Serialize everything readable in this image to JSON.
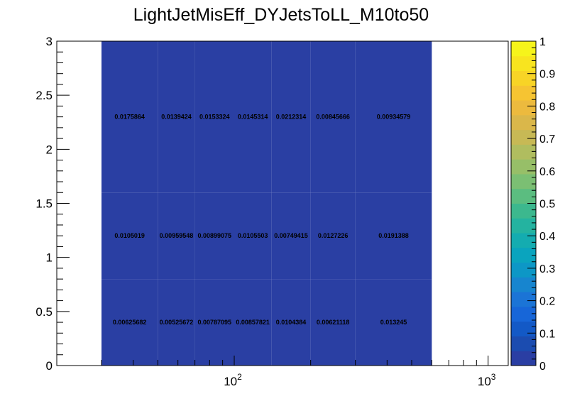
{
  "chart_data": {
    "type": "heatmap",
    "title": "LightJetMisEff_DYJetsToLL_M10to50",
    "x_scale": "log",
    "xlim": [
      20,
      1200
    ],
    "ylim": [
      0,
      3
    ],
    "x_edges": [
      30,
      50,
      70,
      100,
      140,
      200,
      300,
      600
    ],
    "y_edges": [
      0,
      0.8,
      1.6,
      3.0
    ],
    "x_tick_labels": [
      {
        "value": 100,
        "base": "10",
        "exp": "2"
      },
      {
        "value": 1000,
        "base": "10",
        "exp": "3"
      }
    ],
    "y_tick_labels": [
      "0",
      "0.5",
      "1",
      "1.5",
      "2",
      "2.5",
      "3"
    ],
    "cells": [
      [
        "0.00625682",
        "0.00525672",
        "0.00787095",
        "0.00857821",
        "0.0104384",
        "0.00621118",
        "0.013245"
      ],
      [
        "0.0105019",
        "0.00959548",
        "0.00899075",
        "0.0105503",
        "0.00749415",
        "0.0127226",
        "0.0191388"
      ],
      [
        "0.0175864",
        "0.0139424",
        "0.0153324",
        "0.0145314",
        "0.0212314",
        "0.00845666",
        "0.00934579"
      ]
    ],
    "cell_fill_color": "#2a3fa3",
    "colorbar": {
      "range": [
        0,
        1
      ],
      "labels": [
        "0",
        "0.1",
        "0.2",
        "0.3",
        "0.4",
        "0.5",
        "0.6",
        "0.7",
        "0.8",
        "0.9",
        "1"
      ],
      "colors": [
        "#2a3ea3",
        "#1b4cb0",
        "#1359c6",
        "#1766d8",
        "#1b74d6",
        "#1785cf",
        "#0d97c6",
        "#0aa4be",
        "#14acb0",
        "#24b3a0",
        "#3cb88e",
        "#5bbd80",
        "#7bbf73",
        "#97bf68",
        "#b0bd5f",
        "#c7b955",
        "#dab74a",
        "#ecba3e",
        "#f6c432",
        "#f8d426",
        "#f8e41f",
        "#f6f41b"
      ]
    }
  }
}
